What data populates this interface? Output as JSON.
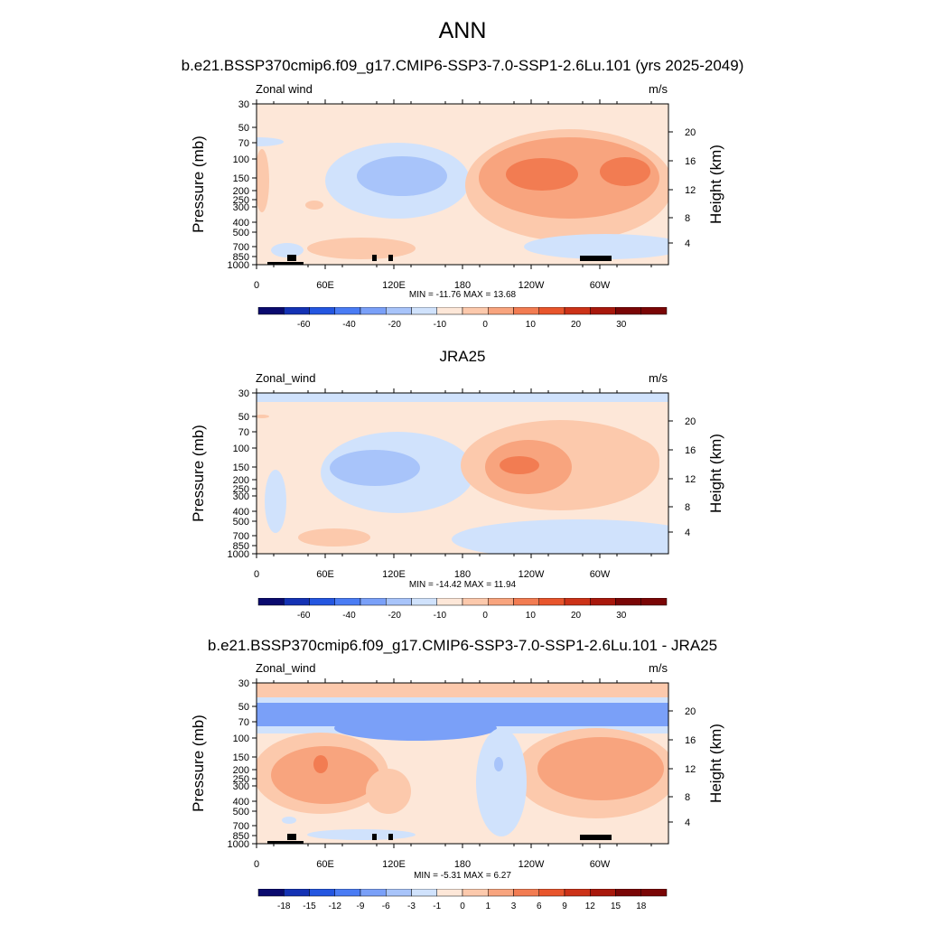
{
  "title": "ANN",
  "panels": [
    {
      "title": "b.e21.BSSP370cmip6.f09_g17.CMIP6-SSP3-7.0-SSP1-2.6Lu.101 (yrs 2025-2049)",
      "var_label": "Zonal wind",
      "units": "m/s",
      "minmax": "MIN = -11.76  MAX =  13.68",
      "colorbar": [
        "-60",
        "-40",
        "-20",
        "-10",
        "0",
        "10",
        "20",
        "30"
      ]
    },
    {
      "title": "JRA25",
      "var_label": "Zonal_wind",
      "units": "m/s",
      "minmax": "MIN = -14.42  MAX =  11.94",
      "colorbar": [
        "-60",
        "-40",
        "-20",
        "-10",
        "0",
        "10",
        "20",
        "30"
      ]
    },
    {
      "title": "b.e21.BSSP370cmip6.f09_g17.CMIP6-SSP3-7.0-SSP1-2.6Lu.101 - JRA25",
      "var_label": "Zonal_wind",
      "units": "m/s",
      "minmax": "MIN =  -5.31  MAX =   6.27",
      "colorbar": [
        "-18",
        "-15",
        "-12",
        "-9",
        "-6",
        "-3",
        "-1",
        "0",
        "1",
        "3",
        "6",
        "9",
        "12",
        "15",
        "18"
      ]
    }
  ],
  "axes": {
    "ylabel": "Pressure (mb)",
    "y2label": "Height (km)",
    "pressure_ticks": [
      "30",
      "50",
      "70",
      "100",
      "150",
      "200",
      "250",
      "300",
      "400",
      "500",
      "700",
      "850",
      "1000"
    ],
    "height_ticks": [
      "20",
      "16",
      "12",
      "8",
      "4"
    ],
    "x_ticks": [
      "0",
      "60E",
      "120E",
      "180",
      "120W",
      "60W"
    ]
  },
  "colors": {
    "scale": [
      "#0a0a6e",
      "#1432b4",
      "#2456e0",
      "#4a7cf4",
      "#7aa0f8",
      "#a8c4fa",
      "#d0e2fc",
      "#fde7d8",
      "#fcc9ac",
      "#f8a47e",
      "#f27c52",
      "#e8552c",
      "#cc3218",
      "#a8180c",
      "#7a0606"
    ]
  }
}
